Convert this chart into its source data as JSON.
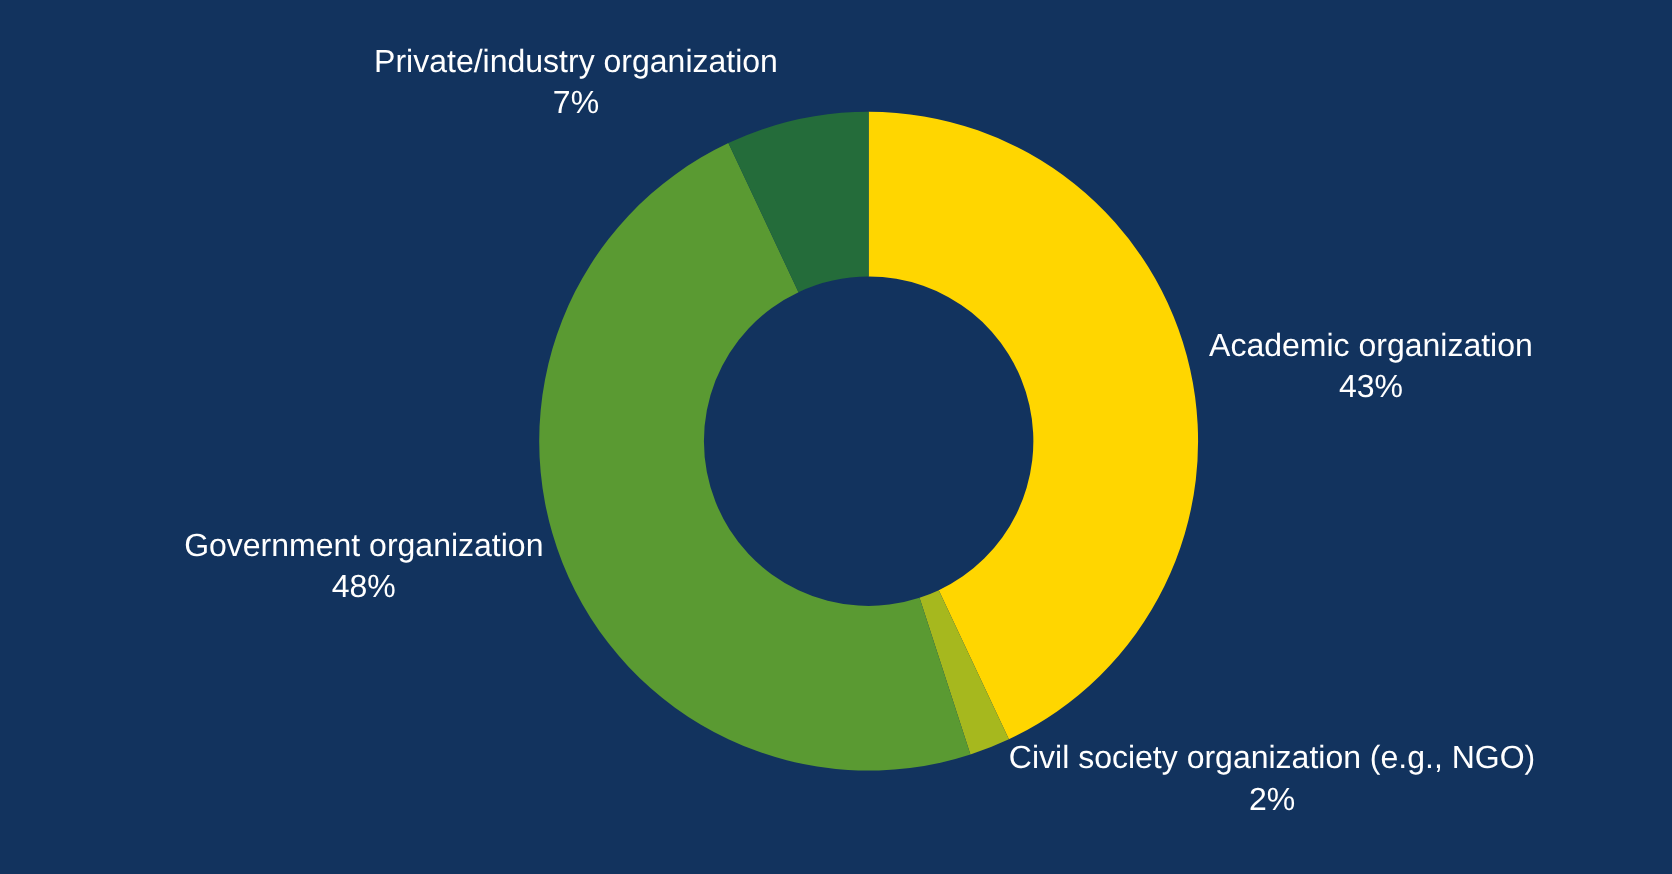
{
  "chart_data": {
    "type": "donut",
    "categories": [
      "Academic organization",
      "Civil society organization (e.g., NGO)",
      "Government organization",
      "Private/industry organization"
    ],
    "values": [
      43,
      2,
      48,
      7
    ],
    "value_labels": [
      "43%",
      "2%",
      "48%",
      "7%"
    ],
    "colors": [
      "#ffd600",
      "#a6b81e",
      "#5a9a32",
      "#246c3a"
    ],
    "legend": false
  }
}
